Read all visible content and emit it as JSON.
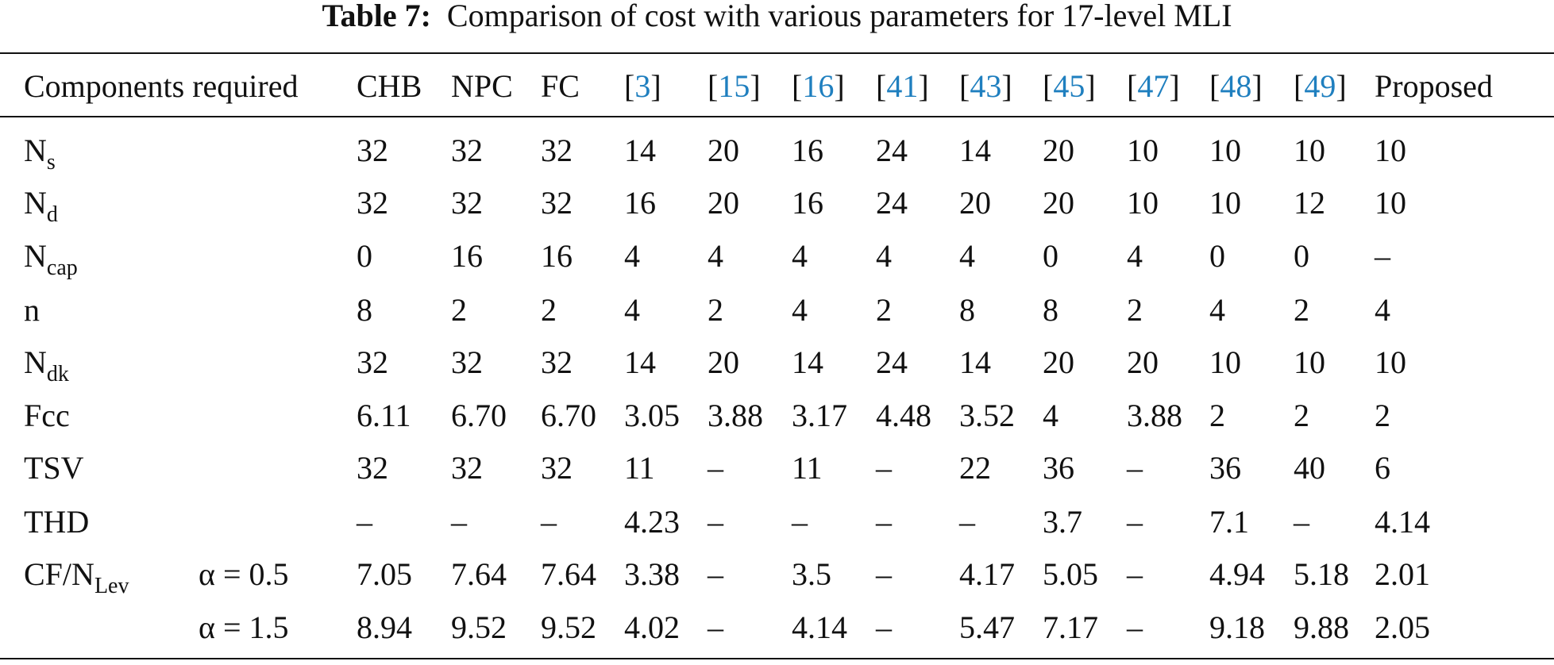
{
  "title": {
    "label": "Table 7:",
    "text": "Comparison of cost with various parameters for 17-level MLI"
  },
  "table": {
    "header": [
      "Components required",
      "CHB",
      "NPC",
      "FC",
      "[3]",
      "[15]",
      "[16]",
      "[41]",
      "[43]",
      "[45]",
      "[47]",
      "[48]",
      "[49]",
      "Proposed"
    ],
    "rows": [
      {
        "label": {
          "text": "N",
          "sub": "s"
        },
        "cells": [
          "32",
          "32",
          "32",
          "14",
          "20",
          "16",
          "24",
          "14",
          "20",
          "10",
          "10",
          "10",
          "10"
        ]
      },
      {
        "label": {
          "text": "N",
          "sub": "d"
        },
        "cells": [
          "32",
          "32",
          "32",
          "16",
          "20",
          "16",
          "24",
          "20",
          "20",
          "10",
          "10",
          "12",
          "10"
        ]
      },
      {
        "label": {
          "text": "N",
          "sub": "cap"
        },
        "cells": [
          "0",
          "16",
          "16",
          "4",
          "4",
          "4",
          "4",
          "4",
          "0",
          "4",
          "0",
          "0",
          "–"
        ]
      },
      {
        "label": {
          "text": "n"
        },
        "cells": [
          "8",
          "2",
          "2",
          "4",
          "2",
          "4",
          "2",
          "8",
          "8",
          "2",
          "4",
          "2",
          "4"
        ]
      },
      {
        "label": {
          "text": "N",
          "sub": "dk"
        },
        "cells": [
          "32",
          "32",
          "32",
          "14",
          "20",
          "14",
          "24",
          "14",
          "20",
          "20",
          "10",
          "10",
          "10"
        ]
      },
      {
        "label": {
          "text": "Fcc"
        },
        "cells": [
          "6.11",
          "6.70",
          "6.70",
          "3.05",
          "3.88",
          "3.17",
          "4.48",
          "3.52",
          "4",
          "3.88",
          "2",
          "2",
          "2"
        ]
      },
      {
        "label": {
          "text": "TSV"
        },
        "cells": [
          "32",
          "32",
          "32",
          "11",
          "–",
          "11",
          "–",
          "22",
          "36",
          "–",
          "36",
          "40",
          "6"
        ]
      },
      {
        "label": {
          "text": "THD"
        },
        "cells": [
          "–",
          "–",
          "–",
          "4.23",
          "–",
          "–",
          "–",
          "–",
          "3.7",
          "–",
          "7.1",
          "–",
          "4.14"
        ]
      },
      {
        "label": {
          "text": "CF/N",
          "sub": "Lev"
        },
        "param": "α = 0.5",
        "cells": [
          "7.05",
          "7.64",
          "7.64",
          "3.38",
          "–",
          "3.5",
          "–",
          "4.17",
          "5.05",
          "–",
          "4.94",
          "5.18",
          "2.01"
        ]
      },
      {
        "param": "α = 1.5",
        "cells": [
          "8.94",
          "9.52",
          "9.52",
          "4.02",
          "–",
          "4.14",
          "–",
          "5.47",
          "7.17",
          "–",
          "9.18",
          "9.88",
          "2.05"
        ]
      }
    ]
  }
}
